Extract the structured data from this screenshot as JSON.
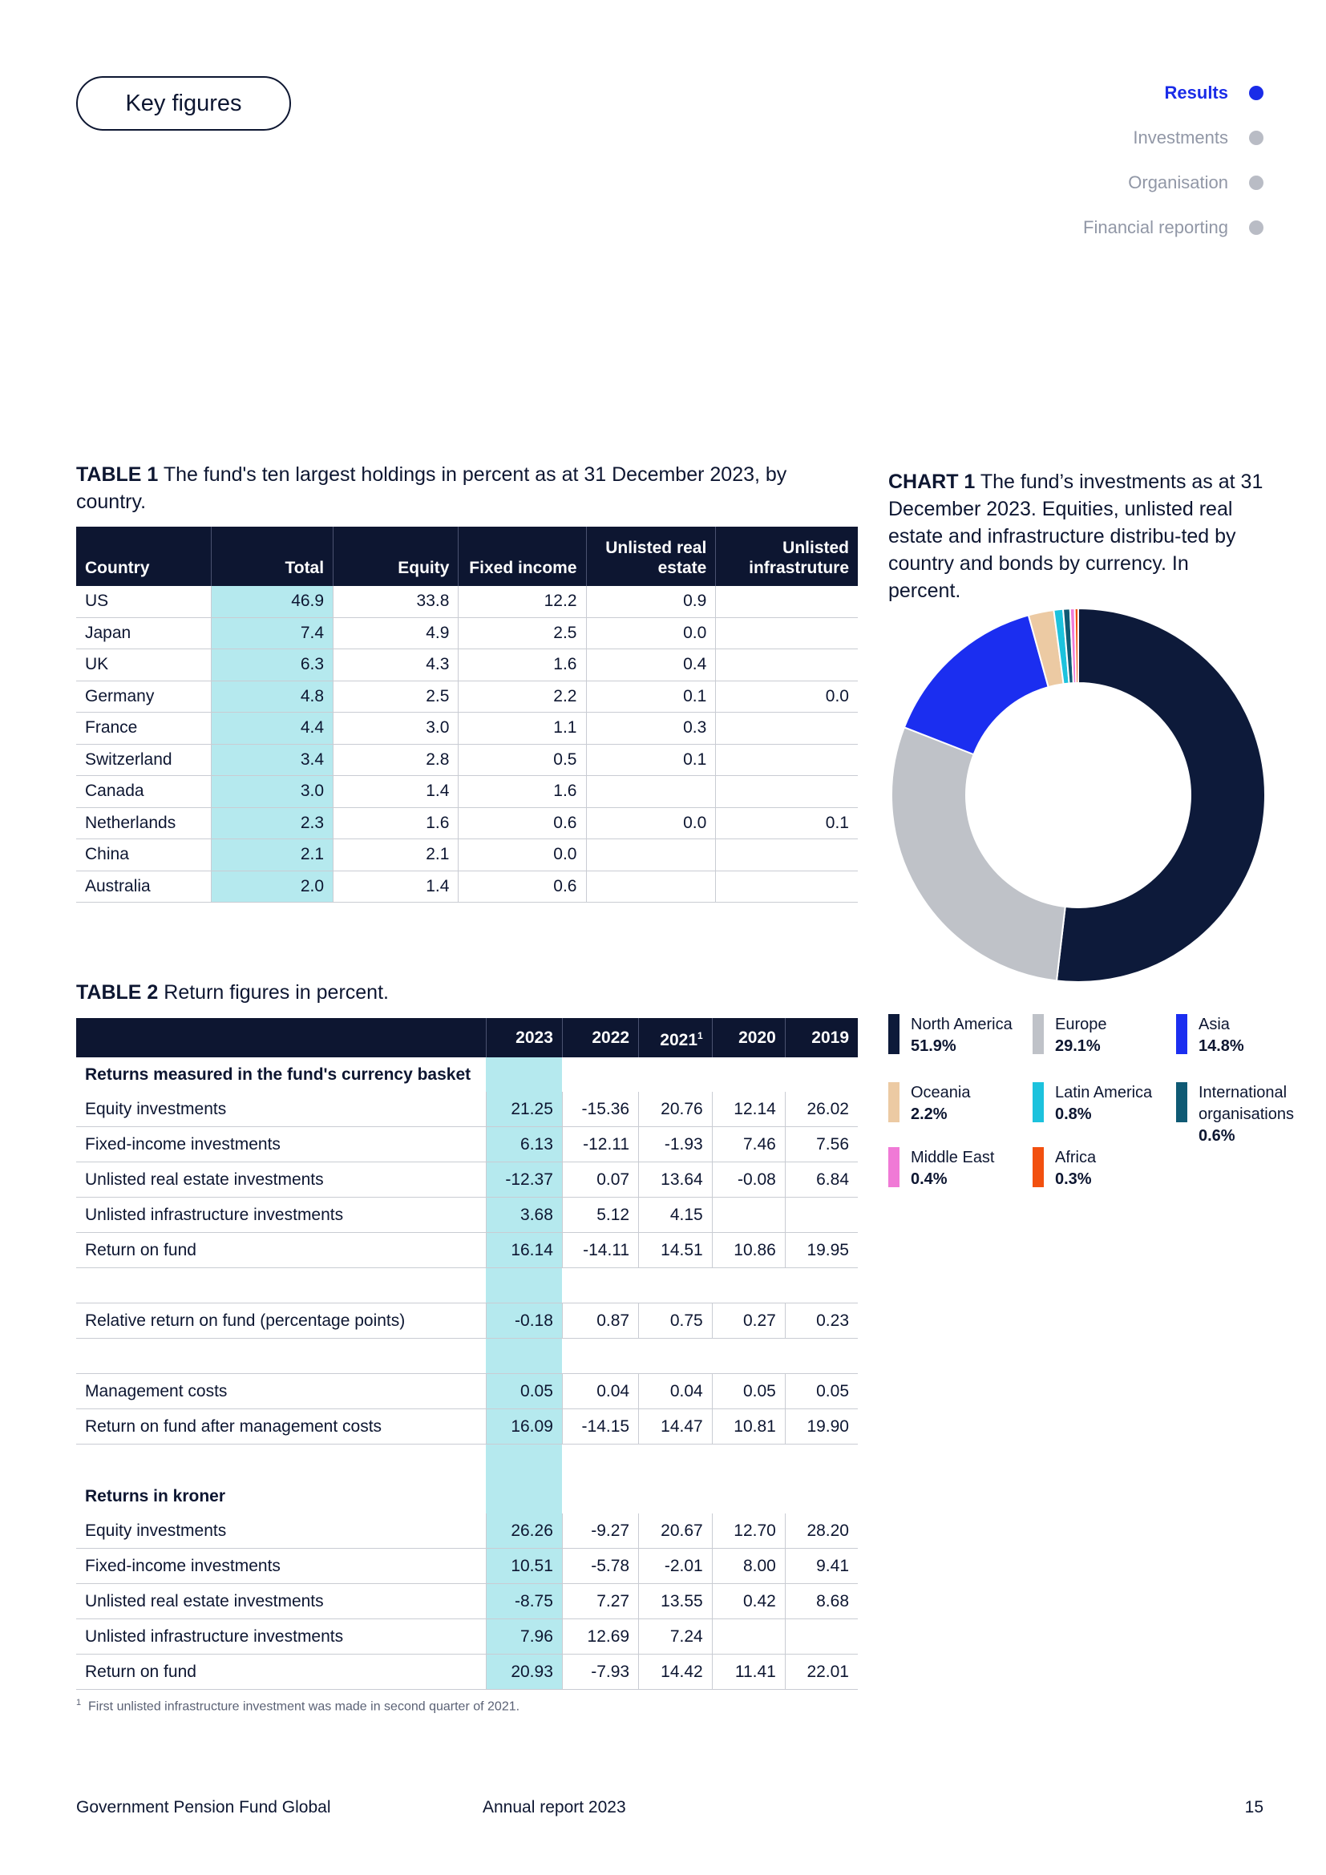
{
  "header": {
    "key_figures_label": "Key figures",
    "nav": [
      {
        "label": "Results",
        "active": true
      },
      {
        "label": "Investments",
        "active": false
      },
      {
        "label": "Organisation",
        "active": false
      },
      {
        "label": "Financial reporting",
        "active": false
      }
    ]
  },
  "table1": {
    "label": "TABLE 1",
    "caption": "The fund's ten largest holdings in percent as at 31 December 2023, by  country.",
    "columns": [
      "Country",
      "Total",
      "Equity",
      "Fixed income",
      "Unlisted real estate",
      "Unlisted infrastruture"
    ],
    "rows": [
      [
        "US",
        "46.9",
        "33.8",
        "12.2",
        "0.9",
        ""
      ],
      [
        "Japan",
        "7.4",
        "4.9",
        "2.5",
        "0.0",
        ""
      ],
      [
        "UK",
        "6.3",
        "4.3",
        "1.6",
        "0.4",
        ""
      ],
      [
        "Germany",
        "4.8",
        "2.5",
        "2.2",
        "0.1",
        "0.0"
      ],
      [
        "France",
        "4.4",
        "3.0",
        "1.1",
        "0.3",
        ""
      ],
      [
        "Switzerland",
        "3.4",
        "2.8",
        "0.5",
        "0.1",
        ""
      ],
      [
        "Canada",
        "3.0",
        "1.4",
        "1.6",
        "",
        ""
      ],
      [
        "Netherlands",
        "2.3",
        "1.6",
        "0.6",
        "0.0",
        "0.1"
      ],
      [
        "China",
        "2.1",
        "2.1",
        "0.0",
        "",
        ""
      ],
      [
        "Australia",
        "2.0",
        "1.4",
        "0.6",
        "",
        ""
      ]
    ]
  },
  "table2": {
    "label": "TABLE 2",
    "caption": "Return figures in percent.",
    "years": [
      "2023",
      "2022",
      "2021",
      "2020",
      "2019"
    ],
    "year_footnote_mark": "1",
    "rows": [
      {
        "type": "section",
        "label": "Returns measured in the fund's currency basket"
      },
      {
        "type": "data",
        "label": "Equity investments",
        "values": [
          "21.25",
          "-15.36",
          "20.76",
          "12.14",
          "26.02"
        ]
      },
      {
        "type": "data",
        "label": "Fixed-income investments",
        "values": [
          "6.13",
          "-12.11",
          "-1.93",
          "7.46",
          "7.56"
        ]
      },
      {
        "type": "data",
        "label": "Unlisted real estate investments",
        "values": [
          "-12.37",
          "0.07",
          "13.64",
          "-0.08",
          "6.84"
        ]
      },
      {
        "type": "data",
        "label": "Unlisted infrastructure investments",
        "values": [
          "3.68",
          "5.12",
          "4.15",
          "",
          ""
        ]
      },
      {
        "type": "data",
        "label": "Return on fund",
        "values": [
          "16.14",
          "-14.11",
          "14.51",
          "10.86",
          "19.95"
        ]
      },
      {
        "type": "blank"
      },
      {
        "type": "data",
        "label": "Relative return on fund (percentage points)",
        "values": [
          "-0.18",
          "0.87",
          "0.75",
          "0.27",
          "0.23"
        ]
      },
      {
        "type": "blank"
      },
      {
        "type": "data",
        "label": "Management costs",
        "values": [
          "0.05",
          "0.04",
          "0.04",
          "0.05",
          "0.05"
        ]
      },
      {
        "type": "data",
        "label": "Return on fund after management costs",
        "values": [
          "16.09",
          "-14.15",
          "14.47",
          "10.81",
          "19.90"
        ]
      },
      {
        "type": "blank2"
      },
      {
        "type": "section",
        "label": "Returns in kroner"
      },
      {
        "type": "data",
        "label": "Equity investments",
        "values": [
          "26.26",
          "-9.27",
          "20.67",
          "12.70",
          "28.20"
        ]
      },
      {
        "type": "data",
        "label": "Fixed-income investments",
        "values": [
          "10.51",
          "-5.78",
          "-2.01",
          "8.00",
          "9.41"
        ]
      },
      {
        "type": "data",
        "label": "Unlisted real estate investments",
        "values": [
          "-8.75",
          "7.27",
          "13.55",
          "0.42",
          "8.68"
        ]
      },
      {
        "type": "data",
        "label": "Unlisted infrastructure investments",
        "values": [
          "7.96",
          "12.69",
          "7.24",
          "",
          ""
        ]
      },
      {
        "type": "data",
        "label": "Return on fund",
        "values": [
          "20.93",
          "-7.93",
          "14.42",
          "11.41",
          "22.01"
        ]
      }
    ],
    "footnote_mark": "1",
    "footnote": "First unlisted infrastructure investment was made in second quarter of 2021."
  },
  "chart1": {
    "label": "CHART 1",
    "caption": "The fund’s investments as at 31 December 2023. Equities, unlisted real estate and infrastructure distribu-ted by country and bonds by currency. In percent."
  },
  "chart_data": {
    "type": "pie",
    "title": "",
    "categories": [
      "North America",
      "Europe",
      "Asia",
      "Oceania",
      "Latin America",
      "International organisations",
      "Middle East",
      "Africa"
    ],
    "values": [
      51.9,
      29.1,
      14.8,
      2.2,
      0.8,
      0.6,
      0.4,
      0.3
    ],
    "value_labels": [
      "51.9%",
      "29.1%",
      "14.8%",
      "2.2%",
      "0.8%",
      "0.6%",
      "0.4%",
      "0.3%"
    ],
    "colors": [
      "#0d1a3a",
      "#bfc2c8",
      "#1b2ef0",
      "#eccaa3",
      "#1cc2dd",
      "#0f5a74",
      "#f07ad6",
      "#f2500f"
    ],
    "legend_placement": "bottom"
  },
  "footer": {
    "left": "Government Pension Fund Global",
    "center": "Annual report 2023",
    "page": "15"
  }
}
